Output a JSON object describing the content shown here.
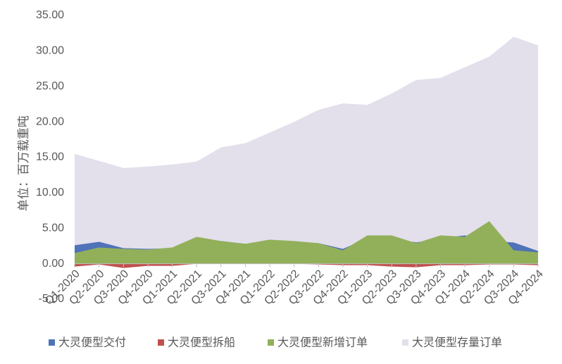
{
  "chart_data": {
    "type": "area",
    "title": "",
    "xlabel": "",
    "ylabel": "单位：百万载重吨",
    "ylim": [
      -5,
      35
    ],
    "yticks": [
      "-5.00",
      "0.00",
      "5.00",
      "10.00",
      "15.00",
      "20.00",
      "25.00",
      "30.00",
      "35.00"
    ],
    "ytick_values": [
      -5,
      0,
      5,
      10,
      15,
      20,
      25,
      30,
      35
    ],
    "categories": [
      "Q1-2020",
      "Q2-2020",
      "Q3-2020",
      "Q4-2020",
      "Q1-2021",
      "Q2-2021",
      "Q3-2021",
      "Q4-2021",
      "Q1-2022",
      "Q2-2022",
      "Q3-2022",
      "Q4-2022",
      "Q1-2023",
      "Q2-2023",
      "Q3-2023",
      "Q4-2023",
      "Q1-2024",
      "Q2-2024",
      "Q3-2024",
      "Q4-2024"
    ],
    "series": [
      {
        "name": "大灵便型存量订单",
        "color": "#E3DFEB",
        "values": [
          15.5,
          14.5,
          13.5,
          13.7,
          14.0,
          14.4,
          16.4,
          17.0,
          18.5,
          20.0,
          21.7,
          22.6,
          22.4,
          24.0,
          25.9,
          26.2,
          27.7,
          29.2,
          32.0,
          30.8
        ]
      },
      {
        "name": "大灵便型交付",
        "color": "#4F72B8",
        "values": [
          2.6,
          3.1,
          2.2,
          2.1,
          2.2,
          3.4,
          3.2,
          2.8,
          3.3,
          3.1,
          2.9,
          2.1,
          3.6,
          3.6,
          3.0,
          3.6,
          4.0,
          3.2,
          3.0,
          1.8
        ]
      },
      {
        "name": "大灵便型新增订单",
        "color": "#92B05A",
        "values": [
          1.5,
          2.3,
          2.1,
          2.0,
          2.3,
          3.8,
          3.2,
          2.8,
          3.4,
          3.2,
          2.9,
          1.9,
          4.0,
          4.0,
          2.9,
          4.0,
          3.8,
          6.0,
          1.9,
          1.6
        ]
      },
      {
        "name": "大灵便型拆船",
        "color": "#C0504D",
        "values": [
          -0.4,
          -0.1,
          -0.6,
          -0.3,
          -0.3,
          0,
          0,
          0,
          0,
          0,
          -0.1,
          -0.2,
          -0.2,
          -0.4,
          -0.5,
          -0.2,
          -0.2,
          -0.1,
          -0.1,
          -0.2
        ]
      }
    ],
    "legend": [
      "大灵便型交付",
      "大灵便型拆船",
      "大灵便型新增订单",
      "大灵便型存量订单"
    ],
    "legend_colors": [
      "#4F72B8",
      "#C0504D",
      "#92B05A",
      "#E3DFEB"
    ],
    "legend_position": "bottom",
    "grid": false
  }
}
